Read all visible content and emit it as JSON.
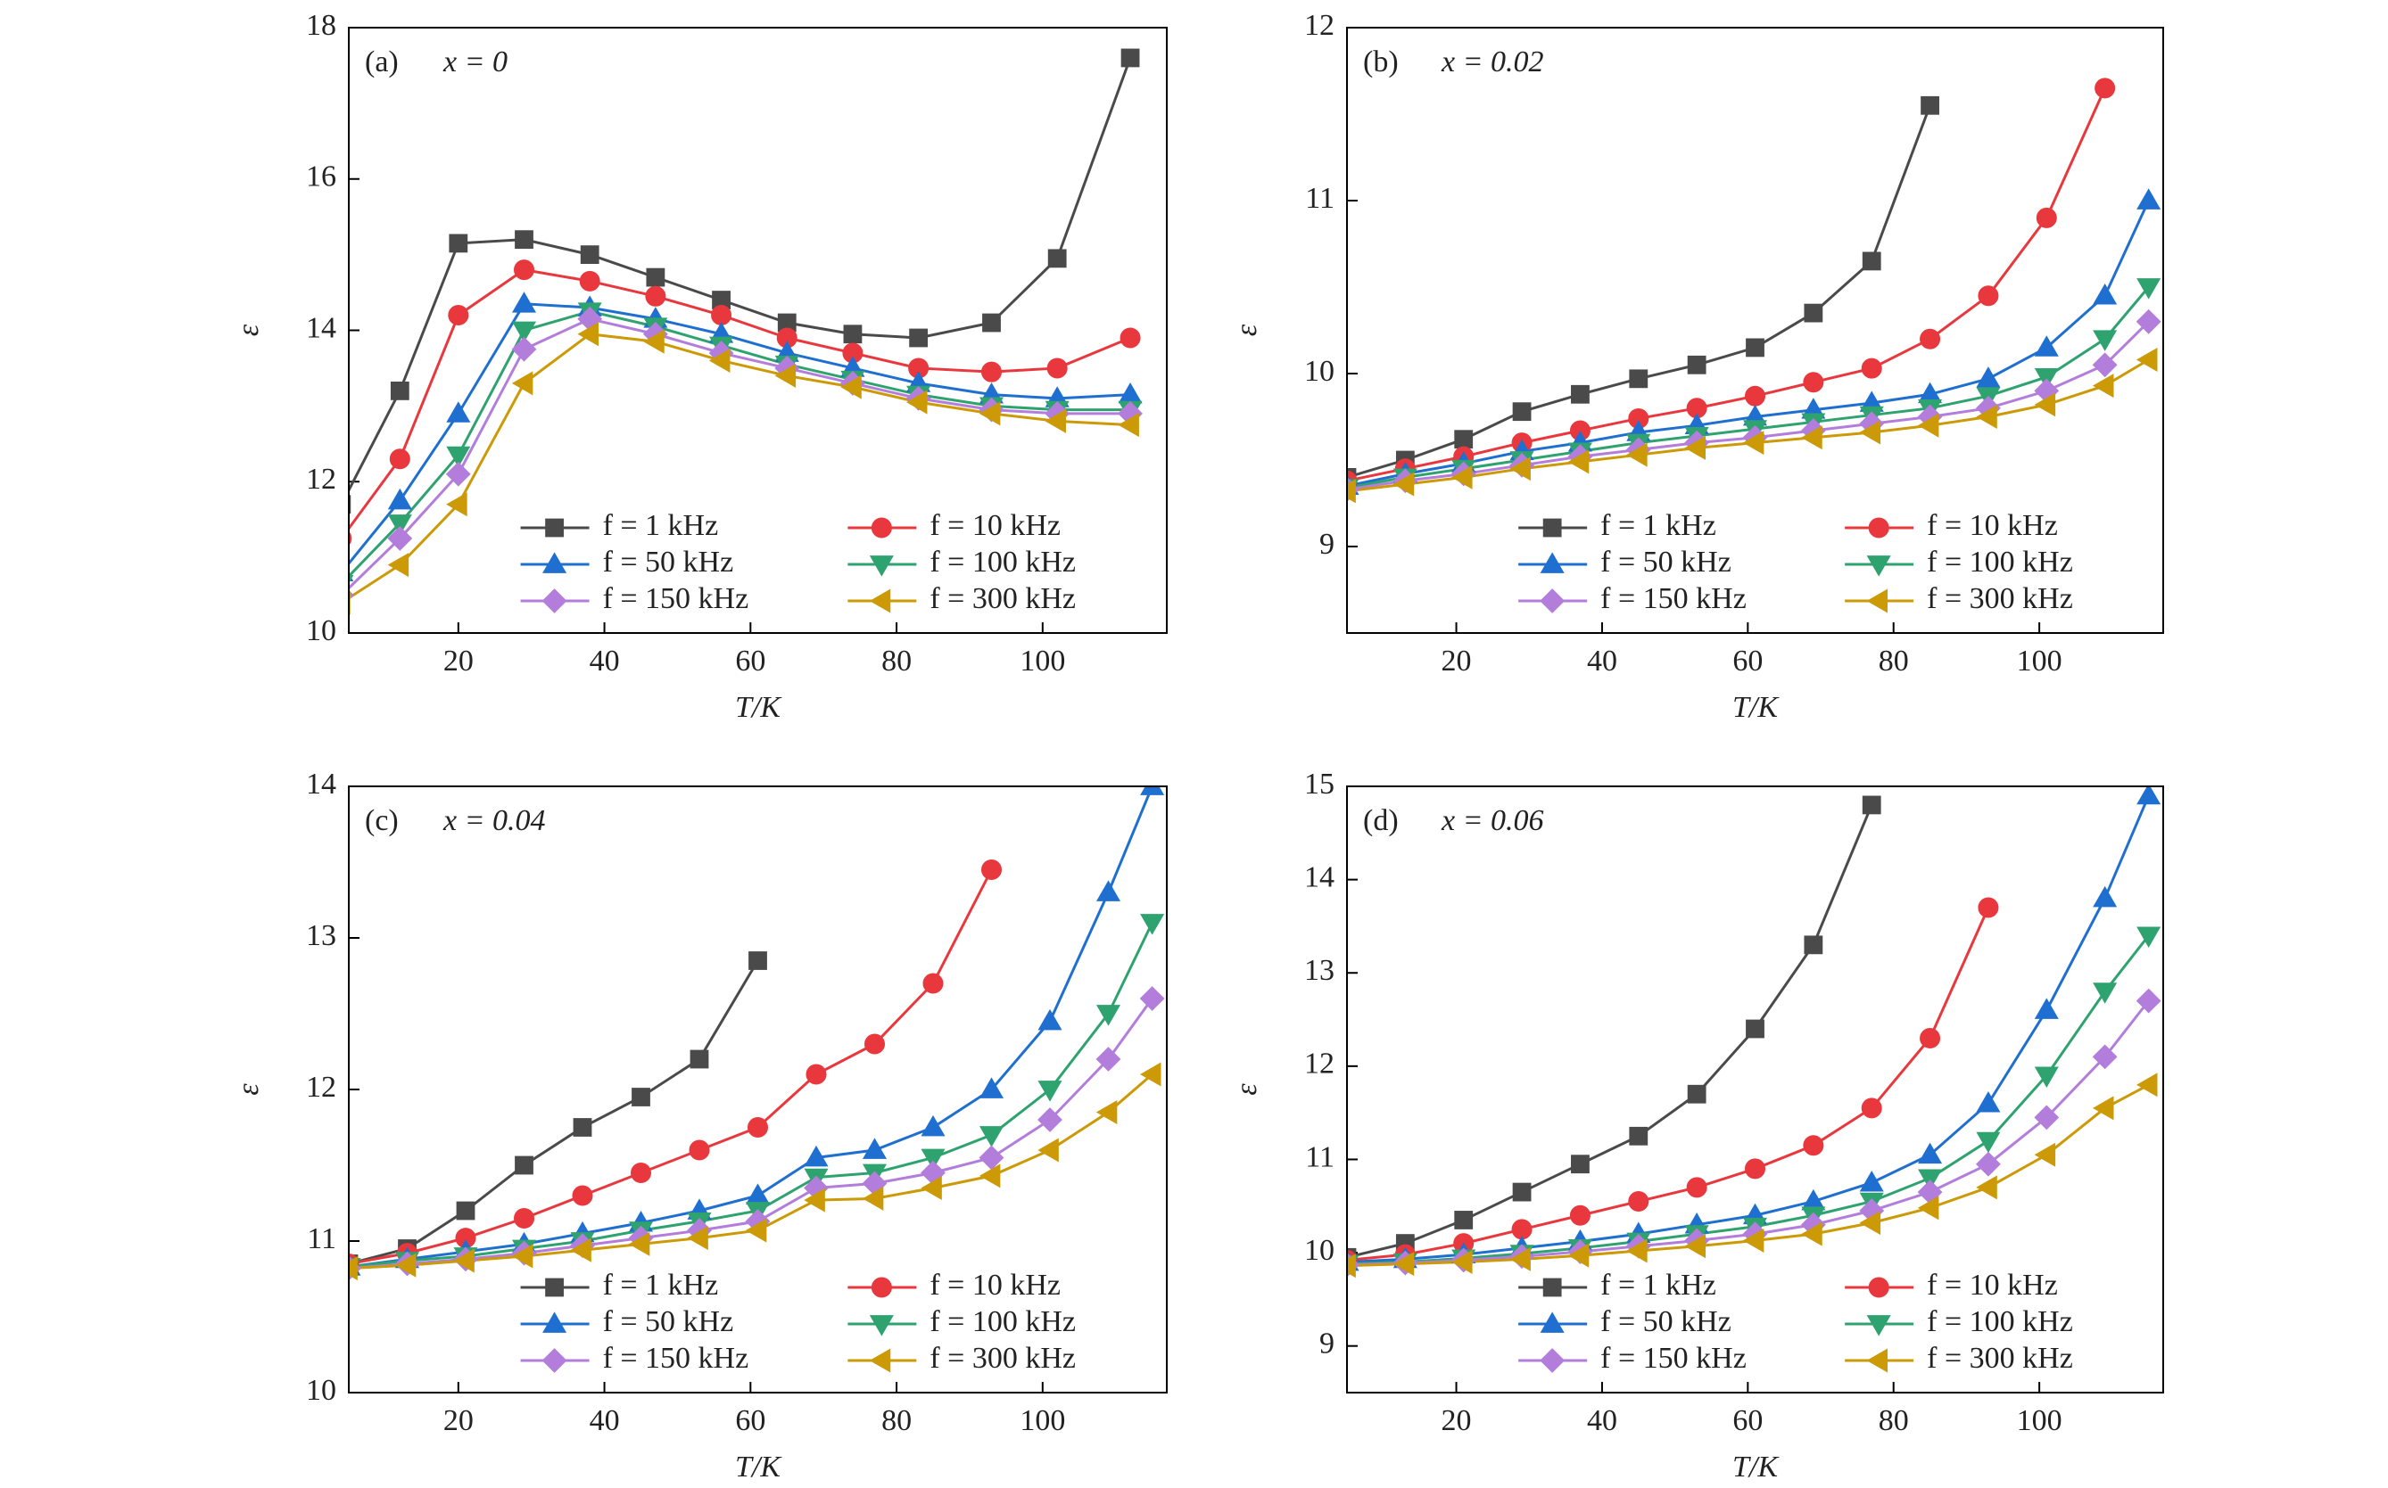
{
  "chart_data": [
    {
      "type": "line",
      "panel": "(a)",
      "annotation": "x = 0",
      "x_label": "T/K",
      "y_label": "ε",
      "x": [
        4,
        12,
        20,
        29,
        38,
        47,
        56,
        65,
        74,
        83,
        93,
        102,
        112
      ],
      "xlim": [
        5,
        117
      ],
      "xticks": [
        20,
        40,
        60,
        80,
        100
      ],
      "ylim": [
        10,
        18
      ],
      "yticks": [
        10,
        12,
        14,
        16,
        18
      ],
      "series": [
        {
          "name": "f = 1 kHz",
          "color": "#4a4a4a",
          "marker": "square",
          "values": [
            11.7,
            13.2,
            15.15,
            15.2,
            15.0,
            14.7,
            14.4,
            14.1,
            13.95,
            13.9,
            14.1,
            14.95,
            17.6
          ]
        },
        {
          "name": "f = 10 kHz",
          "color": "#e8383d",
          "marker": "circle",
          "values": [
            11.25,
            12.3,
            14.2,
            14.8,
            14.65,
            14.45,
            14.2,
            13.9,
            13.7,
            13.5,
            13.45,
            13.5,
            13.9
          ]
        },
        {
          "name": "f = 50 kHz",
          "color": "#1f6fd0",
          "marker": "triangle-up",
          "values": [
            10.8,
            11.75,
            12.9,
            14.35,
            14.3,
            14.15,
            13.95,
            13.7,
            13.5,
            13.3,
            13.15,
            13.1,
            13.15
          ]
        },
        {
          "name": "f = 100 kHz",
          "color": "#2ea26f",
          "marker": "triangle-down",
          "values": [
            10.65,
            11.45,
            12.35,
            14.0,
            14.25,
            14.05,
            13.8,
            13.55,
            13.35,
            13.15,
            13.0,
            12.95,
            12.95
          ]
        },
        {
          "name": "f = 150 kHz",
          "color": "#b37ddb",
          "marker": "diamond",
          "values": [
            10.5,
            11.25,
            12.1,
            13.75,
            14.15,
            13.95,
            13.7,
            13.5,
            13.3,
            13.1,
            12.95,
            12.9,
            12.9
          ]
        },
        {
          "name": "f = 300 kHz",
          "color": "#cc9a06",
          "marker": "triangle-left",
          "values": [
            10.4,
            10.9,
            11.7,
            13.3,
            13.95,
            13.85,
            13.6,
            13.4,
            13.25,
            13.05,
            12.9,
            12.8,
            12.75
          ]
        }
      ]
    },
    {
      "type": "line",
      "panel": "(b)",
      "annotation": "x = 0.02",
      "x_label": "T/K",
      "y_label": "ε",
      "x": [
        5,
        13,
        21,
        29,
        37,
        45,
        53,
        61,
        69,
        77,
        85,
        93,
        101,
        109,
        115
      ],
      "xlim": [
        5,
        117
      ],
      "xticks": [
        20,
        40,
        60,
        80,
        100
      ],
      "ylim": [
        8.5,
        12
      ],
      "yticks": [
        9,
        10,
        11,
        12
      ],
      "series": [
        {
          "name": "f = 1 kHz",
          "color": "#4a4a4a",
          "marker": "square",
          "values": [
            9.4,
            9.5,
            9.62,
            9.78,
            9.88,
            9.97,
            10.05,
            10.15,
            10.35,
            10.65,
            11.55,
            null,
            null,
            null,
            null
          ]
        },
        {
          "name": "f = 10 kHz",
          "color": "#e8383d",
          "marker": "circle",
          "values": [
            9.38,
            9.45,
            9.52,
            9.6,
            9.67,
            9.74,
            9.8,
            9.87,
            9.95,
            10.03,
            10.2,
            10.45,
            10.9,
            11.65,
            null
          ]
        },
        {
          "name": "f = 50 kHz",
          "color": "#1f6fd0",
          "marker": "triangle-up",
          "values": [
            9.35,
            9.42,
            9.48,
            9.55,
            9.6,
            9.66,
            9.7,
            9.75,
            9.79,
            9.83,
            9.88,
            9.97,
            10.15,
            10.45,
            11.0
          ]
        },
        {
          "name": "f = 100 kHz",
          "color": "#2ea26f",
          "marker": "triangle-down",
          "values": [
            9.34,
            9.4,
            9.45,
            9.5,
            9.55,
            9.6,
            9.64,
            9.68,
            9.72,
            9.76,
            9.8,
            9.87,
            9.98,
            10.2,
            10.5
          ]
        },
        {
          "name": "f = 150 kHz",
          "color": "#b37ddb",
          "marker": "diamond",
          "values": [
            9.33,
            9.38,
            9.42,
            9.47,
            9.52,
            9.56,
            9.6,
            9.63,
            9.67,
            9.71,
            9.75,
            9.8,
            9.9,
            10.05,
            10.3
          ]
        },
        {
          "name": "f = 300 kHz",
          "color": "#cc9a06",
          "marker": "triangle-left",
          "values": [
            9.32,
            9.36,
            9.4,
            9.45,
            9.49,
            9.53,
            9.57,
            9.6,
            9.63,
            9.66,
            9.7,
            9.75,
            9.82,
            9.93,
            10.08
          ]
        }
      ]
    },
    {
      "type": "line",
      "panel": "(c)",
      "annotation": "x = 0.04",
      "x_label": "T/K",
      "y_label": "ε",
      "x": [
        5,
        13,
        21,
        29,
        37,
        45,
        53,
        61,
        69,
        77,
        85,
        93,
        101,
        109,
        115
      ],
      "xlim": [
        5,
        117
      ],
      "xticks": [
        20,
        40,
        60,
        80,
        100
      ],
      "ylim": [
        10,
        14
      ],
      "yticks": [
        10,
        11,
        12,
        13,
        14
      ],
      "series": [
        {
          "name": "f = 1 kHz",
          "color": "#4a4a4a",
          "marker": "square",
          "values": [
            10.85,
            10.95,
            11.2,
            11.5,
            11.75,
            11.95,
            12.2,
            12.85,
            null,
            null,
            null,
            null,
            null,
            null,
            null
          ]
        },
        {
          "name": "f = 10 kHz",
          "color": "#e8383d",
          "marker": "circle",
          "values": [
            10.85,
            10.92,
            11.02,
            11.15,
            11.3,
            11.45,
            11.6,
            11.75,
            12.1,
            12.3,
            12.7,
            13.45,
            null,
            null,
            null
          ]
        },
        {
          "name": "f = 50 kHz",
          "color": "#1f6fd0",
          "marker": "triangle-up",
          "values": [
            10.83,
            10.88,
            10.93,
            10.98,
            11.05,
            11.12,
            11.2,
            11.3,
            11.55,
            11.6,
            11.75,
            12.0,
            12.45,
            13.3,
            14.0
          ]
        },
        {
          "name": "f = 100 kHz",
          "color": "#2ea26f",
          "marker": "triangle-down",
          "values": [
            10.83,
            10.87,
            10.9,
            10.95,
            11.0,
            11.07,
            11.13,
            11.2,
            11.42,
            11.45,
            11.55,
            11.7,
            12.0,
            12.5,
            13.1
          ]
        },
        {
          "name": "f = 150 kHz",
          "color": "#b37ddb",
          "marker": "diamond",
          "values": [
            10.82,
            10.85,
            10.88,
            10.92,
            10.97,
            11.02,
            11.07,
            11.13,
            11.35,
            11.38,
            11.45,
            11.55,
            11.8,
            12.2,
            12.6
          ]
        },
        {
          "name": "f = 300 kHz",
          "color": "#cc9a06",
          "marker": "triangle-left",
          "values": [
            10.82,
            10.84,
            10.87,
            10.9,
            10.94,
            10.98,
            11.02,
            11.07,
            11.27,
            11.28,
            11.35,
            11.43,
            11.6,
            11.85,
            12.1
          ]
        }
      ]
    },
    {
      "type": "line",
      "panel": "(d)",
      "annotation": "x = 0.06",
      "x_label": "T/K",
      "y_label": "ε",
      "x": [
        5,
        13,
        21,
        29,
        37,
        45,
        53,
        61,
        69,
        77,
        85,
        93,
        101,
        109,
        115
      ],
      "xlim": [
        5,
        117
      ],
      "xticks": [
        20,
        40,
        60,
        80,
        100
      ],
      "ylim": [
        8.5,
        15
      ],
      "yticks": [
        9,
        10,
        11,
        12,
        13,
        14,
        15
      ],
      "series": [
        {
          "name": "f = 1 kHz",
          "color": "#4a4a4a",
          "marker": "square",
          "values": [
            9.95,
            10.1,
            10.35,
            10.65,
            10.95,
            11.25,
            11.7,
            12.4,
            13.3,
            14.8,
            null,
            null,
            null,
            null,
            null
          ]
        },
        {
          "name": "f = 10 kHz",
          "color": "#e8383d",
          "marker": "circle",
          "values": [
            9.92,
            9.98,
            10.1,
            10.25,
            10.4,
            10.55,
            10.7,
            10.9,
            11.15,
            11.55,
            12.3,
            13.7,
            null,
            null,
            null
          ]
        },
        {
          "name": "f = 50 kHz",
          "color": "#1f6fd0",
          "marker": "triangle-up",
          "values": [
            9.9,
            9.93,
            9.98,
            10.05,
            10.12,
            10.2,
            10.3,
            10.4,
            10.55,
            10.75,
            11.05,
            11.6,
            12.6,
            13.8,
            14.9
          ]
        },
        {
          "name": "f = 100 kHz",
          "color": "#2ea26f",
          "marker": "triangle-down",
          "values": [
            9.88,
            9.9,
            9.94,
            9.99,
            10.05,
            10.12,
            10.2,
            10.28,
            10.4,
            10.55,
            10.8,
            11.2,
            11.9,
            12.8,
            13.4
          ]
        },
        {
          "name": "f = 150 kHz",
          "color": "#b37ddb",
          "marker": "diamond",
          "values": [
            9.87,
            9.89,
            9.92,
            9.96,
            10.01,
            10.07,
            10.13,
            10.2,
            10.3,
            10.45,
            10.65,
            10.95,
            11.45,
            12.1,
            12.7
          ]
        },
        {
          "name": "f = 300 kHz",
          "color": "#cc9a06",
          "marker": "triangle-left",
          "values": [
            9.86,
            9.88,
            9.9,
            9.93,
            9.97,
            10.02,
            10.07,
            10.13,
            10.2,
            10.32,
            10.48,
            10.7,
            11.05,
            11.55,
            11.8
          ]
        }
      ]
    }
  ]
}
